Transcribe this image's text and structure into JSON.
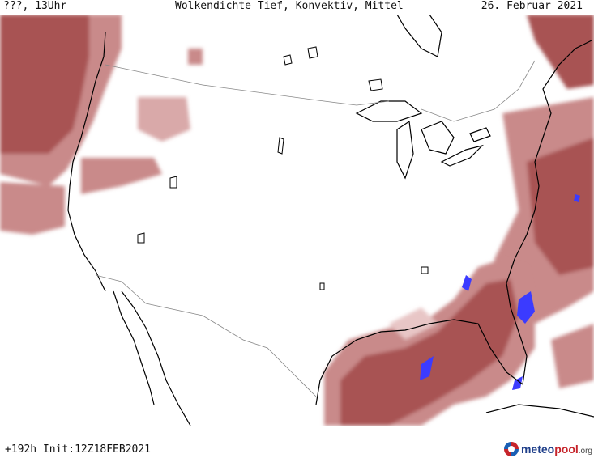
{
  "header": {
    "left": "???, 13Uhr",
    "center": "Wolkendichte  Tief, Konvektiv, Mittel",
    "right": "26. Februar 2021"
  },
  "footer": {
    "run_info": "+192h Init:12Z18FEB2021",
    "logo": {
      "part1": "meteo",
      "part2": "pool",
      "suffix": ".org"
    }
  },
  "colors": {
    "cloud_light": "#e8c6c6",
    "cloud_mid": "#c98a8a",
    "cloud_dense": "#a85252",
    "convective": "#3b3bff",
    "coastline": "#000000",
    "borders": "#888888"
  }
}
